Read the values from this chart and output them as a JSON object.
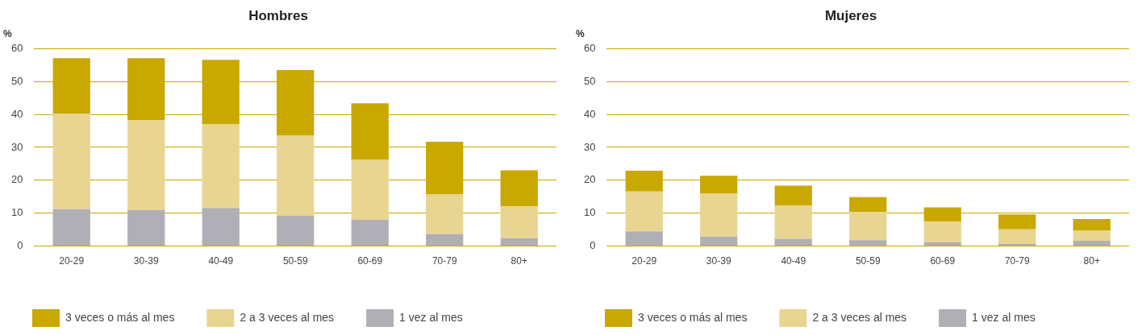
{
  "chart_data": [
    {
      "type": "bar",
      "title": "Hombres",
      "ylabel": "%",
      "categories": [
        "20-29",
        "30-39",
        "40-49",
        "50-59",
        "60-69",
        "70-79",
        "80+"
      ],
      "stacked": true,
      "ylim": [
        0,
        60
      ],
      "yticks": [
        0,
        10,
        20,
        30,
        40,
        50,
        60
      ],
      "grid": "y",
      "legend": "bottom",
      "series": [
        {
          "name": "1 vez al mes",
          "color": "#b0afb5",
          "values": [
            11.2,
            11.0,
            11.6,
            9.2,
            8.0,
            3.7,
            2.4
          ]
        },
        {
          "name": "2 a 3 veces al mes",
          "color": "#e8d591",
          "values": [
            29.1,
            27.3,
            25.4,
            24.5,
            18.2,
            12.0,
            9.7
          ]
        },
        {
          "name": "3 veces o más al mes",
          "color": "#c9a800",
          "values": [
            16.8,
            18.8,
            19.6,
            19.8,
            17.2,
            16.0,
            10.9
          ]
        }
      ]
    },
    {
      "type": "bar",
      "title": "Mujeres",
      "ylabel": "%",
      "categories": [
        "20-29",
        "30-39",
        "40-49",
        "50-59",
        "60-69",
        "70-79",
        "80+"
      ],
      "stacked": true,
      "ylim": [
        0,
        60
      ],
      "yticks": [
        0,
        10,
        20,
        30,
        40,
        50,
        60
      ],
      "grid": "y",
      "legend": "bottom",
      "series": [
        {
          "name": "1 vez al mes",
          "color": "#b0afb5",
          "values": [
            4.5,
            2.9,
            2.2,
            1.8,
            1.2,
            0.7,
            1.6
          ]
        },
        {
          "name": "2 a 3 veces al mes",
          "color": "#e8d591",
          "values": [
            12.1,
            13.0,
            10.2,
            8.6,
            6.2,
            4.4,
            3.1
          ]
        },
        {
          "name": "3 veces o más al mes",
          "color": "#c9a800",
          "values": [
            6.3,
            5.5,
            6.0,
            4.5,
            4.4,
            4.5,
            3.5
          ]
        }
      ]
    }
  ]
}
